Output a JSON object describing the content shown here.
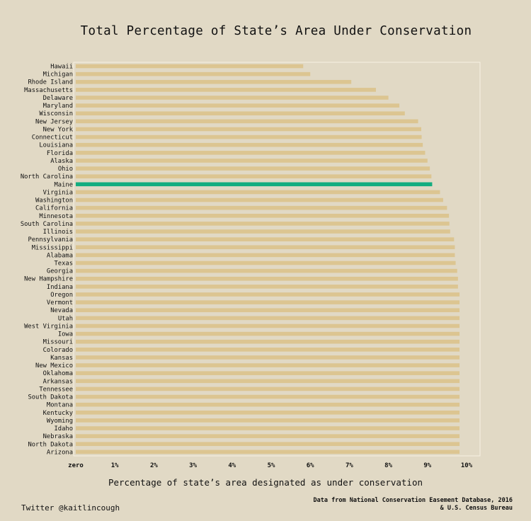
{
  "chart_data": {
    "type": "bar",
    "orientation": "horizontal",
    "title": "Total Percentage of State’s Area Under Conservation",
    "xlabel": "Percentage of state’s area designated as under conservation",
    "ylabel": "",
    "xlim": [
      0,
      10
    ],
    "x_tick_labels": [
      "zero",
      "1%",
      "2%",
      "3%",
      "4%",
      "5%",
      "6%",
      "7%",
      "8%",
      "9%",
      "10%"
    ],
    "bar_color": "#dcc591",
    "highlight_color": "#13ad80",
    "highlight_category": "Maine",
    "grid": false,
    "categories": [
      "Hawaii",
      "Michigan",
      "Rhode Island",
      "Massachusetts",
      "Delaware",
      "Maryland",
      "Wisconsin",
      "New Jersey",
      "New York",
      "Connecticut",
      "Louisiana",
      "Florida",
      "Alaska",
      "Ohio",
      "North Carolina",
      "Maine",
      "Virginia",
      "Washington",
      "California",
      "Minnesota",
      "South Carolina",
      "Illinois",
      "Pennsylvania",
      "Mississippi",
      "Alabama",
      "Texas",
      "Georgia",
      "New Hampshire",
      "Indiana",
      "Oregon",
      "Vermont",
      "Nevada",
      "Utah",
      "West Virginia",
      "Iowa",
      "Missouri",
      "Colorado",
      "Kansas",
      "New Mexico",
      "Oklahoma",
      "Arkansas",
      "Tennessee",
      "South Dakota",
      "Montana",
      "Kentucky",
      "Wyoming",
      "Idaho",
      "Nebraska",
      "North Dakota",
      "Arizona"
    ],
    "values": [
      5.82,
      6.0,
      7.05,
      7.68,
      8.0,
      8.28,
      8.42,
      8.76,
      8.84,
      8.85,
      8.88,
      8.94,
      9.0,
      9.06,
      9.1,
      9.12,
      9.32,
      9.4,
      9.5,
      9.55,
      9.56,
      9.58,
      9.68,
      9.7,
      9.7,
      9.72,
      9.76,
      9.78,
      9.78,
      9.82,
      9.82,
      9.82,
      9.82,
      9.82,
      9.82,
      9.82,
      9.82,
      9.82,
      9.82,
      9.82,
      9.82,
      9.82,
      9.82,
      9.82,
      9.82,
      9.82,
      9.82,
      9.82,
      9.82,
      9.82
    ]
  },
  "credit": "Twitter @kaitlincough",
  "source_line1": "Data from National Conservation Easement Database, 2016",
  "source_line2": "& U.S. Census Bureau"
}
